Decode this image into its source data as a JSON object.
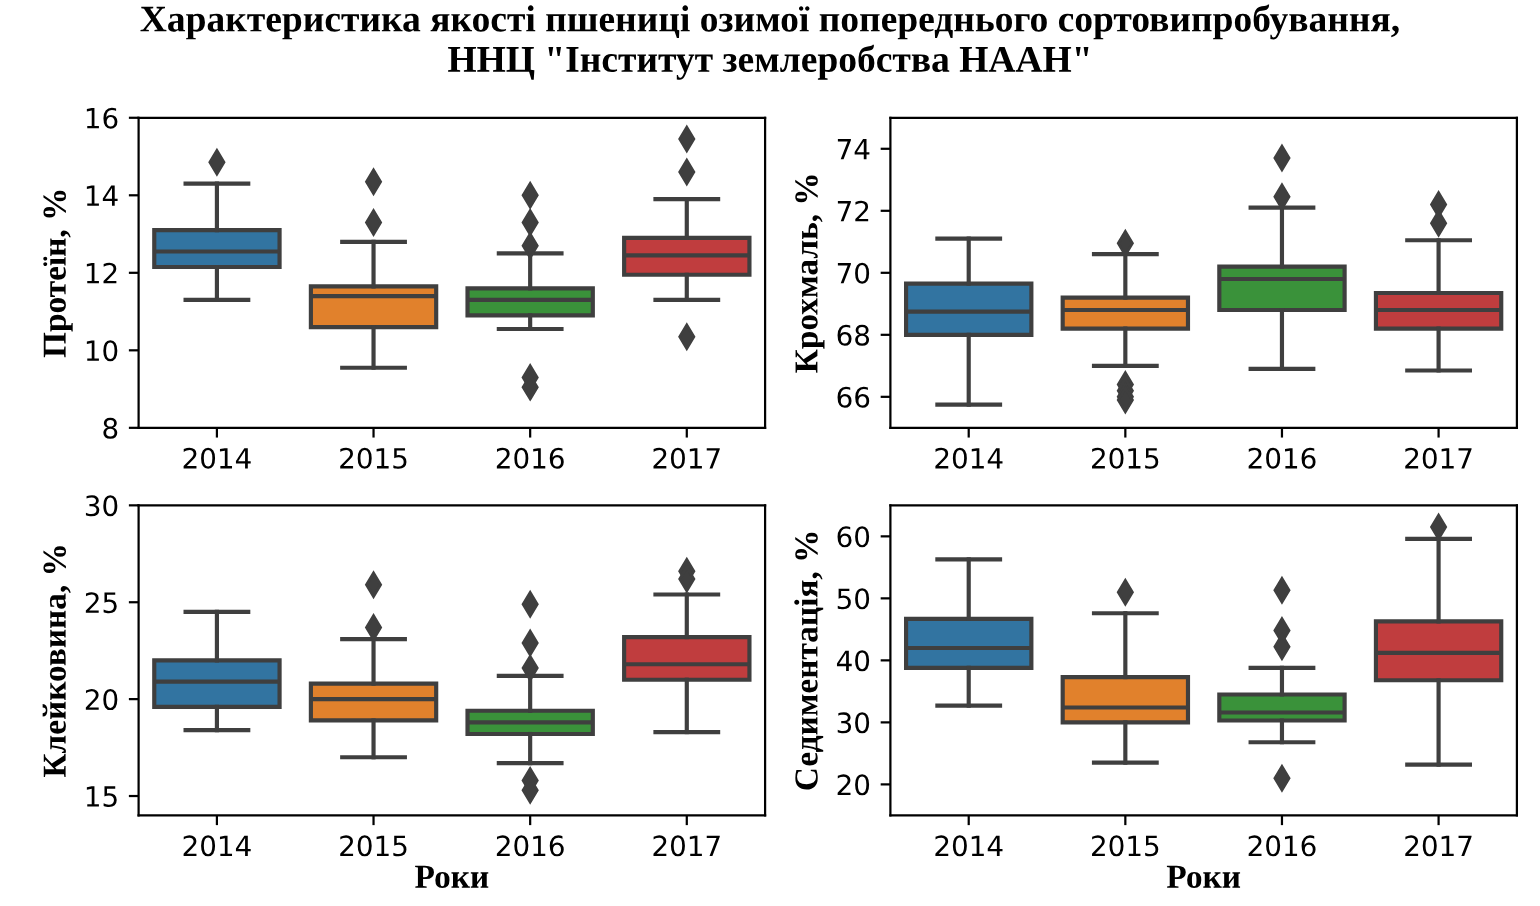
{
  "chart_data": [
    {
      "type": "box",
      "title": "Характеристика якості пшениці озимої попереднього сортовипробування,\nННЦ \"Інститут землеробства НААН\"",
      "ylabel": "Протеїн, %",
      "categories": [
        "2014",
        "2015",
        "2016",
        "2017"
      ],
      "colors": [
        "#3274a1",
        "#e1812c",
        "#3a923a",
        "#c03d3e"
      ],
      "ylim": [
        8,
        16
      ],
      "yticks": [
        8,
        10,
        12,
        14,
        16
      ],
      "grid": false,
      "marker": "diamond",
      "boxes": [
        {
          "low": 11.3,
          "q1": 12.15,
          "median": 12.55,
          "q3": 13.1,
          "high": 14.3,
          "outliers": [
            14.85
          ]
        },
        {
          "low": 9.55,
          "q1": 10.6,
          "median": 11.4,
          "q3": 11.65,
          "high": 12.8,
          "outliers": [
            14.35,
            13.3
          ]
        },
        {
          "low": 10.55,
          "q1": 10.9,
          "median": 11.3,
          "q3": 11.6,
          "high": 12.5,
          "outliers": [
            14.0,
            13.3,
            12.7,
            9.3,
            9.05
          ]
        },
        {
          "low": 11.3,
          "q1": 11.95,
          "median": 12.45,
          "q3": 12.9,
          "high": 13.9,
          "outliers": [
            15.45,
            14.6,
            10.35
          ]
        }
      ]
    },
    {
      "type": "box",
      "ylabel": "Крохмаль, %",
      "categories": [
        "2014",
        "2015",
        "2016",
        "2017"
      ],
      "colors": [
        "#3274a1",
        "#e1812c",
        "#3a923a",
        "#c03d3e"
      ],
      "ylim": [
        65,
        75
      ],
      "yticks": [
        66,
        68,
        70,
        72,
        74
      ],
      "grid": false,
      "marker": "diamond",
      "boxes": [
        {
          "low": 65.75,
          "q1": 68.0,
          "median": 68.75,
          "q3": 69.65,
          "high": 71.1
        },
        {
          "low": 67.0,
          "q1": 68.2,
          "median": 68.8,
          "q3": 69.2,
          "high": 70.6,
          "outliers": [
            70.95,
            66.4,
            66.2,
            66.0,
            65.9
          ]
        },
        {
          "low": 66.9,
          "q1": 68.8,
          "median": 69.8,
          "q3": 70.2,
          "high": 72.1,
          "outliers": [
            73.7,
            72.45
          ]
        },
        {
          "low": 66.85,
          "q1": 68.2,
          "median": 68.8,
          "q3": 69.35,
          "high": 71.05,
          "outliers": [
            72.2,
            71.6
          ]
        }
      ]
    },
    {
      "type": "box",
      "ylabel": "Клейковина, %",
      "xlabel": "Роки",
      "categories": [
        "2014",
        "2015",
        "2016",
        "2017"
      ],
      "colors": [
        "#3274a1",
        "#e1812c",
        "#3a923a",
        "#c03d3e"
      ],
      "ylim": [
        14,
        30
      ],
      "yticks": [
        15,
        20,
        25,
        30
      ],
      "grid": false,
      "marker": "diamond",
      "boxes": [
        {
          "low": 18.4,
          "q1": 19.6,
          "median": 20.9,
          "q3": 22.0,
          "high": 24.5
        },
        {
          "low": 17.0,
          "q1": 18.9,
          "median": 20.0,
          "q3": 20.8,
          "high": 23.1,
          "outliers": [
            25.9,
            23.7
          ]
        },
        {
          "low": 16.7,
          "q1": 18.2,
          "median": 18.8,
          "q3": 19.4,
          "high": 21.2,
          "outliers": [
            24.9,
            22.9,
            21.6,
            15.8,
            15.3
          ]
        },
        {
          "low": 18.3,
          "q1": 21.0,
          "median": 21.8,
          "q3": 23.2,
          "high": 25.4,
          "outliers": [
            26.6,
            26.2
          ]
        }
      ]
    },
    {
      "type": "box",
      "ylabel": "Седиментація, %",
      "xlabel": "Роки",
      "categories": [
        "2014",
        "2015",
        "2016",
        "2017"
      ],
      "colors": [
        "#3274a1",
        "#e1812c",
        "#3a923a",
        "#c03d3e"
      ],
      "ylim": [
        15,
        65
      ],
      "yticks": [
        20,
        30,
        40,
        50,
        60
      ],
      "grid": false,
      "marker": "diamond",
      "boxes": [
        {
          "low": 32.7,
          "q1": 38.8,
          "median": 42.0,
          "q3": 46.7,
          "high": 56.3
        },
        {
          "low": 23.5,
          "q1": 30.0,
          "median": 32.4,
          "q3": 37.3,
          "high": 47.6,
          "outliers": [
            51.0
          ]
        },
        {
          "low": 26.8,
          "q1": 30.3,
          "median": 31.6,
          "q3": 34.5,
          "high": 38.8,
          "outliers": [
            51.3,
            44.8,
            42.2,
            21.0
          ]
        },
        {
          "low": 23.2,
          "q1": 36.8,
          "median": 41.2,
          "q3": 46.3,
          "high": 59.6,
          "outliers": [
            61.5
          ]
        }
      ]
    }
  ]
}
